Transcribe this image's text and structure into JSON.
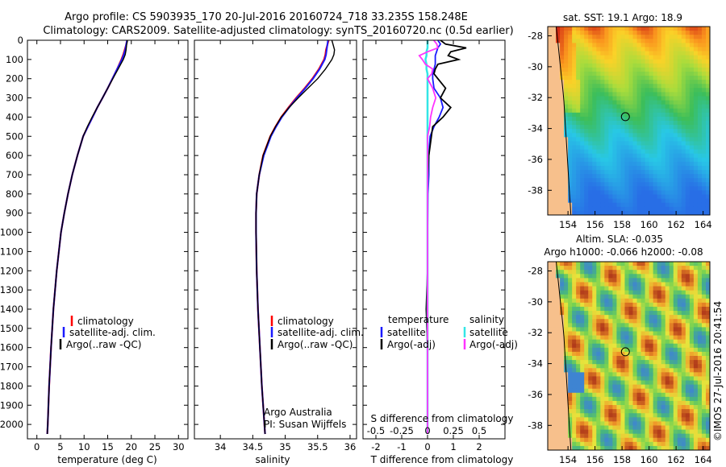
{
  "header": {
    "line1": "Argo profile: CS 5903935_170 20-Jul-2016 20160724_718 33.235S 158.248E",
    "line2": "Climatology: CARS2009. Satellite-adjusted climatology: synTS_20160720.nc (0.5d earlier)"
  },
  "footer": {
    "stamp": "©IMOS 27-Jul-2016 20:41:54",
    "credit_line1": "Argo Australia",
    "credit_line2": "PI: Susan Wijffels"
  },
  "colors": {
    "climatology": "#ff0000",
    "satellite": "#1a1aff",
    "argo": "#000000",
    "sal_satellite": "#33e6e6",
    "sal_argo": "#ff33ff"
  },
  "maps": {
    "sst": {
      "title": "sat. SST: 19.1  Argo: 18.9",
      "lon_ticks": [
        "154",
        "156",
        "158",
        "160",
        "162",
        "164"
      ],
      "lat_ticks": [
        "-28",
        "-30",
        "-32",
        "-34",
        "-36",
        "-38"
      ]
    },
    "sla": {
      "title_line1": "Altim. SLA: -0.035",
      "title_line2": "Argo h1000: -0.066 h2000: -0.08",
      "lon_ticks": [
        "154",
        "156",
        "158",
        "160",
        "162",
        "164"
      ],
      "lat_ticks": [
        "-28",
        "-30",
        "-32",
        "-34",
        "-36",
        "-38"
      ]
    },
    "profile_location": {
      "lon": 158.248,
      "lat": -33.235
    }
  },
  "chart_data": [
    {
      "type": "line",
      "title": "",
      "xlabel": "temperature (deg C)",
      "ylabel": "",
      "xlim": [
        -2,
        32
      ],
      "ylim": [
        2075,
        0
      ],
      "x_ticks": [
        "0",
        "5",
        "10",
        "15",
        "20",
        "25",
        "30"
      ],
      "y_ticks": [
        "0",
        "100",
        "200",
        "300",
        "400",
        "500",
        "600",
        "700",
        "800",
        "900",
        "1000",
        "1100",
        "1200",
        "1300",
        "1400",
        "1500",
        "1600",
        "1700",
        "1800",
        "1900",
        "2000"
      ],
      "legend": [
        "climatology",
        "satellite-adj. clim.",
        "Argo(..raw -QC)"
      ],
      "depth": [
        0,
        25,
        50,
        75,
        100,
        150,
        200,
        250,
        300,
        350,
        400,
        450,
        500,
        600,
        700,
        800,
        900,
        1000,
        1200,
        1400,
        1600,
        1800,
        2000,
        2050
      ],
      "series": [
        {
          "name": "climatology",
          "values": [
            19.1,
            18.9,
            18.6,
            18.3,
            17.9,
            17.0,
            16.0,
            15.0,
            13.9,
            12.8,
            11.8,
            10.8,
            9.8,
            8.6,
            7.5,
            6.6,
            5.8,
            5.1,
            4.2,
            3.5,
            3.0,
            2.6,
            2.3,
            2.2
          ]
        },
        {
          "name": "satellite-adj. clim.",
          "values": [
            19.1,
            18.9,
            18.7,
            18.4,
            18.0,
            17.0,
            16.0,
            15.0,
            13.9,
            12.8,
            11.8,
            10.8,
            9.8,
            8.6,
            7.5,
            6.6,
            5.8,
            5.1,
            4.2,
            3.5,
            3.0,
            2.6,
            2.3,
            2.2
          ]
        },
        {
          "name": "Argo(..raw -QC)",
          "values": [
            19.2,
            19.0,
            18.9,
            18.7,
            18.3,
            17.2,
            16.1,
            15.0,
            13.9,
            12.8,
            11.7,
            10.7,
            9.8,
            8.6,
            7.5,
            6.6,
            5.8,
            5.1,
            4.2,
            3.5,
            3.0,
            2.6,
            2.3,
            2.2
          ]
        }
      ]
    },
    {
      "type": "line",
      "title": "",
      "xlabel": "salinity",
      "ylabel": "",
      "xlim": [
        33.6,
        36.1
      ],
      "ylim": [
        2075,
        0
      ],
      "x_ticks": [
        "34",
        "34.5",
        "35",
        "35.5",
        "36"
      ],
      "legend": [
        "climatology",
        "satellite-adj. clim.",
        "Argo(..raw -QC)"
      ],
      "depth": [
        0,
        25,
        50,
        75,
        100,
        150,
        200,
        250,
        300,
        350,
        400,
        450,
        500,
        600,
        700,
        800,
        900,
        1000,
        1200,
        1400,
        1600,
        1800,
        2000,
        2050
      ],
      "series": [
        {
          "name": "climatology",
          "values": [
            35.67,
            35.65,
            35.63,
            35.62,
            35.6,
            35.52,
            35.42,
            35.3,
            35.17,
            35.05,
            34.94,
            34.85,
            34.77,
            34.66,
            34.6,
            34.56,
            34.55,
            34.55,
            34.56,
            34.58,
            34.61,
            34.64,
            34.68,
            34.69
          ]
        },
        {
          "name": "satellite-adj. clim.",
          "values": [
            35.66,
            35.65,
            35.64,
            35.63,
            35.61,
            35.53,
            35.43,
            35.31,
            35.18,
            35.06,
            34.95,
            34.86,
            34.78,
            34.67,
            34.6,
            34.56,
            34.55,
            34.55,
            34.56,
            34.58,
            34.61,
            34.64,
            34.68,
            34.69
          ]
        },
        {
          "name": "Argo(..raw -QC)",
          "values": [
            35.72,
            35.74,
            35.76,
            35.75,
            35.72,
            35.62,
            35.5,
            35.35,
            35.2,
            35.06,
            34.94,
            34.85,
            34.77,
            34.66,
            34.6,
            34.56,
            34.55,
            34.55,
            34.56,
            34.58,
            34.61,
            34.64,
            34.68,
            34.69
          ]
        }
      ]
    },
    {
      "type": "line",
      "title": "",
      "xlabel": "T difference from climatology",
      "xlabel_top": "S difference from climatology",
      "ylabel": "",
      "xlim": [
        -2.5,
        3.0
      ],
      "ylim": [
        2075,
        0
      ],
      "x_ticks": [
        "-2",
        "-1",
        "0",
        "1",
        "2"
      ],
      "x_ticks_top": [
        "-0.5",
        "-0.25",
        "0",
        "0.25",
        "0.5"
      ],
      "legend_titles": [
        "temperature",
        "salinity"
      ],
      "legend": [
        "satellite",
        "Argo(-adj)",
        "satellite",
        "Argo(-adj)"
      ],
      "depth": [
        0,
        20,
        40,
        60,
        80,
        100,
        125,
        150,
        175,
        200,
        250,
        300,
        350,
        400,
        450,
        500,
        600,
        700,
        800,
        1000,
        1200,
        1400,
        1600,
        1800,
        2000,
        2050
      ],
      "series": [
        {
          "name": "temperature satellite",
          "values": [
            0.4,
            0.5,
            0.4,
            0.35,
            0.3,
            0.3,
            0.3,
            0.25,
            0.2,
            0.2,
            0.25,
            0.5,
            0.6,
            0.45,
            0.25,
            0.1,
            0.05,
            0.05,
            0.02,
            0.0,
            0.0,
            0.0,
            0.0,
            0.0,
            0.0,
            0.0
          ]
        },
        {
          "name": "temperature Argo(-adj)",
          "values": [
            0.5,
            0.7,
            1.5,
            0.9,
            0.8,
            1.2,
            0.4,
            0.3,
            0.25,
            0.4,
            0.7,
            0.5,
            0.9,
            0.6,
            0.2,
            0.15,
            0.05,
            0.02,
            0.0,
            0.0,
            0.0,
            -0.05,
            0.0,
            0.0,
            0.0,
            0.0
          ]
        },
        {
          "name": "salinity satellite",
          "values": [
            0.0,
            0.0,
            0.0,
            -0.01,
            -0.01,
            -0.02,
            -0.01,
            -0.01,
            0.0,
            0.0,
            0.0,
            0.0,
            0.0,
            0.0,
            0.0,
            0.0,
            0.0,
            0.0,
            0.0,
            0.0,
            0.0,
            0.0,
            0.0,
            0.0,
            0.0,
            0.0
          ]
        },
        {
          "name": "salinity Argo(-adj)",
          "values": [
            0.06,
            0.09,
            0.1,
            0.0,
            -0.08,
            -0.05,
            -0.02,
            0.05,
            0.04,
            0.0,
            0.05,
            0.08,
            0.05,
            0.03,
            0.02,
            0.0,
            0.0,
            0.0,
            0.0,
            0.0,
            0.0,
            0.0,
            0.0,
            0.0,
            0.0,
            0.0
          ]
        }
      ]
    }
  ]
}
